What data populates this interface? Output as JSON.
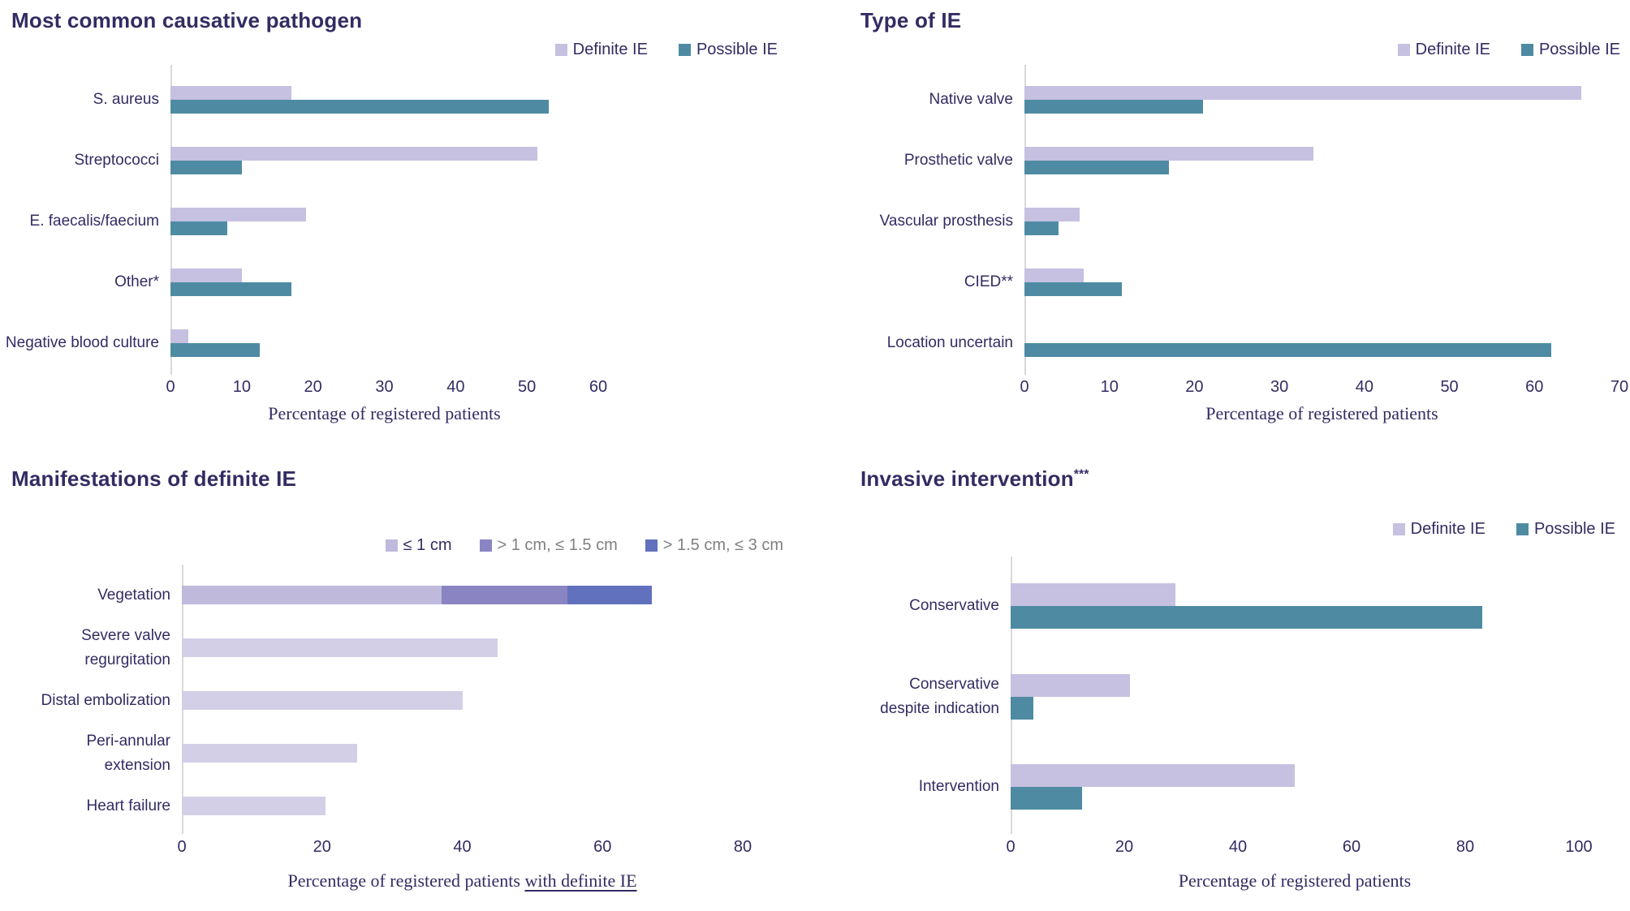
{
  "colors": {
    "definite": "#c6c0e1",
    "possible": "#4e8ba3",
    "veg_le1": "#bfb9dc",
    "veg_1_15": "#8a84c2",
    "veg_15_3": "#6271bd",
    "single": "#d3cfe6",
    "text": "#332c63",
    "muted_text": "#7f7f7f",
    "axis_line": "#d9d9d9"
  },
  "chart_data": [
    {
      "type": "bar",
      "orientation": "horizontal-grouped",
      "title": "Most common causative pathogen",
      "title_sup": "",
      "xlabel": "Percentage of registered patients",
      "xlabel_underlined_suffix": "",
      "xmax": 60,
      "ticks": [
        0,
        10,
        20,
        30,
        40,
        50,
        60
      ],
      "legend": [
        {
          "label": "Definite IE",
          "color_key": "definite",
          "muted": false
        },
        {
          "label": "Possible IE",
          "color_key": "possible",
          "muted": false
        }
      ],
      "categories": [
        "S. aureus",
        "Streptococci",
        "E. faecalis/faecium",
        "Other*",
        "Negative blood culture"
      ],
      "series": [
        {
          "name": "Definite IE",
          "color_key": "definite",
          "values": [
            17,
            51.5,
            19,
            10,
            2.5
          ]
        },
        {
          "name": "Possible IE",
          "color_key": "possible",
          "values": [
            53,
            10,
            8,
            17,
            12.5
          ]
        }
      ]
    },
    {
      "type": "bar",
      "orientation": "horizontal-grouped",
      "title": "Type of IE",
      "title_sup": "",
      "xlabel": "Percentage of registered patients",
      "xlabel_underlined_suffix": "",
      "xmax": 70,
      "ticks": [
        0,
        10,
        20,
        30,
        40,
        50,
        60,
        70
      ],
      "legend": [
        {
          "label": "Definite IE",
          "color_key": "definite",
          "muted": false
        },
        {
          "label": "Possible IE",
          "color_key": "possible",
          "muted": false
        }
      ],
      "categories": [
        "Native valve",
        "Prosthetic valve",
        "Vascular prosthesis",
        "CIED**",
        "Location uncertain"
      ],
      "series": [
        {
          "name": "Definite IE",
          "color_key": "definite",
          "values": [
            65.5,
            34,
            6.5,
            7,
            0
          ]
        },
        {
          "name": "Possible IE",
          "color_key": "possible",
          "values": [
            21,
            17,
            4,
            11.5,
            62
          ]
        }
      ]
    },
    {
      "type": "bar",
      "orientation": "horizontal-stacked",
      "title": "Manifestations of definite IE",
      "title_sup": "",
      "xlabel": "Percentage of registered patients",
      "xlabel_underlined_suffix": "with definite IE",
      "xmax": 80,
      "ticks": [
        0,
        20,
        40,
        60,
        80
      ],
      "legend": [
        {
          "label": "≤ 1 cm",
          "color_key": "veg_le1",
          "muted": false
        },
        {
          "label": "> 1 cm, ≤ 1.5 cm",
          "color_key": "veg_1_15",
          "muted": true
        },
        {
          "label": "> 1.5 cm, ≤ 3 cm",
          "color_key": "veg_15_3",
          "muted": true
        }
      ],
      "categories": [
        "Vegetation",
        "Severe valve\nregurgitation",
        "Distal embolization",
        "Peri-annular\nextension",
        "Heart failure"
      ],
      "stacks": [
        [
          {
            "value": 37,
            "color_key": "veg_le1"
          },
          {
            "value": 18,
            "color_key": "veg_1_15"
          },
          {
            "value": 12,
            "color_key": "veg_15_3"
          }
        ],
        [
          {
            "value": 45,
            "color_key": "single"
          }
        ],
        [
          {
            "value": 40,
            "color_key": "single"
          }
        ],
        [
          {
            "value": 25,
            "color_key": "single"
          }
        ],
        [
          {
            "value": 20.5,
            "color_key": "single"
          }
        ]
      ]
    },
    {
      "type": "bar",
      "orientation": "horizontal-grouped",
      "title": "Invasive intervention",
      "title_sup": "***",
      "xlabel": "Percentage of registered patients",
      "xlabel_underlined_suffix": "",
      "xmax": 100,
      "ticks": [
        0,
        20,
        40,
        60,
        80,
        100
      ],
      "legend": [
        {
          "label": "Definite IE",
          "color_key": "definite",
          "muted": false
        },
        {
          "label": "Possible IE",
          "color_key": "possible",
          "muted": false
        }
      ],
      "categories": [
        "Conservative",
        "Conservative\ndespite indication",
        "Intervention"
      ],
      "series": [
        {
          "name": "Definite IE",
          "color_key": "definite",
          "values": [
            29,
            21,
            50
          ]
        },
        {
          "name": "Possible IE",
          "color_key": "possible",
          "values": [
            83,
            4,
            12.5
          ]
        }
      ]
    }
  ]
}
